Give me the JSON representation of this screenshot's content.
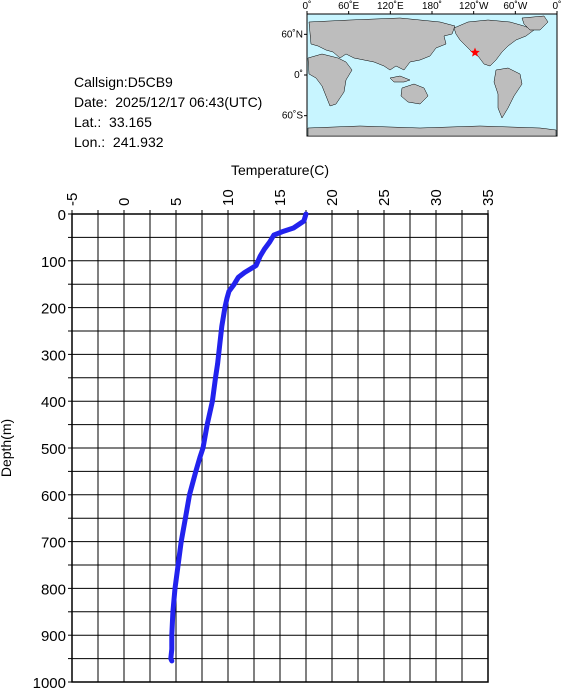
{
  "station": {
    "callsign_label": "Callsign:",
    "callsign": "D5CB9",
    "date_label": "Date:",
    "date": "2025/12/17 06:43(UTC)",
    "lat_label": "Lat.:",
    "lat": "33.165",
    "lon_label": "Lon.:",
    "lon": "241.932"
  },
  "map": {
    "lon_ticks": [
      "0˚",
      "60˚E",
      "120˚E",
      "180˚",
      "120˚W",
      "60˚W",
      "0˚"
    ],
    "lat_ticks": [
      "60˚N",
      "0˚",
      "60˚S"
    ],
    "marker": {
      "lon": 241.932,
      "lat": 33.165,
      "color": "#ff0000"
    },
    "ocean_color": "#c8f5ff",
    "land_color": "#bdbdbd"
  },
  "chart_data": {
    "type": "line",
    "title": "",
    "xlabel": "Temperature(C)",
    "ylabel": "Depth(m)",
    "xlim": [
      -5,
      35
    ],
    "ylim": [
      1000,
      0
    ],
    "x_ticks": [
      "-5",
      "0",
      "5",
      "10",
      "15",
      "20",
      "25",
      "30",
      "35"
    ],
    "y_ticks": [
      "0",
      "100",
      "200",
      "300",
      "400",
      "500",
      "600",
      "700",
      "800",
      "900",
      "1000"
    ],
    "grid": true,
    "series": [
      {
        "color": "#2222ee",
        "x": [
          17.5,
          17.3,
          16.3,
          15.2,
          14.4,
          14.0,
          13.5,
          13.1,
          12.7,
          11.6,
          11.0,
          10.6,
          10.1,
          9.9,
          9.7,
          9.4,
          9.2,
          9.0,
          8.8,
          8.5,
          8.0,
          7.6,
          7.3,
          6.9,
          6.3,
          5.9,
          5.5,
          5.2,
          4.9,
          4.7,
          4.6,
          4.6,
          4.5,
          4.6
        ],
        "y": [
          0,
          15,
          30,
          38,
          45,
          60,
          75,
          90,
          110,
          125,
          135,
          150,
          165,
          180,
          200,
          240,
          280,
          320,
          350,
          400,
          450,
          500,
          520,
          550,
          600,
          650,
          700,
          750,
          800,
          850,
          900,
          930,
          950,
          955
        ]
      }
    ]
  }
}
